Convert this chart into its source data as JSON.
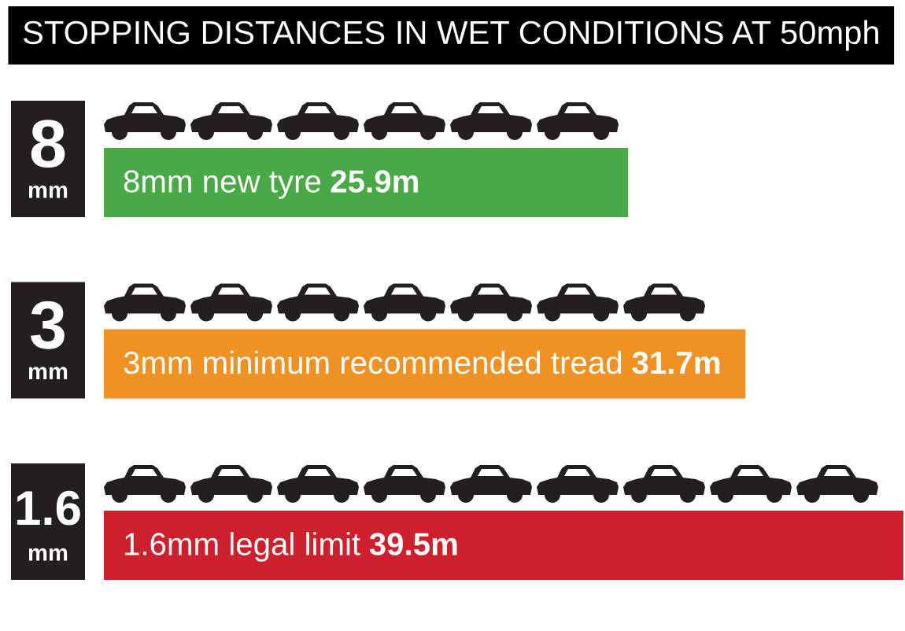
{
  "chart_data": {
    "type": "bar",
    "orientation": "horizontal",
    "title": "STOPPING DISTANCES IN WET CONDITIONS AT 50mph",
    "categories": [
      "8 mm",
      "3 mm",
      "1.6 mm"
    ],
    "values": [
      25.9,
      31.7,
      39.5
    ],
    "colors": [
      "#4aa947",
      "#f09124",
      "#cd202c"
    ],
    "value_labels": [
      "25.9m",
      "31.7m",
      "39.5m"
    ],
    "annotations": [
      "8mm new tyre",
      "3mm minimum recommended tread",
      "1.6mm legal limit"
    ]
  }
}
